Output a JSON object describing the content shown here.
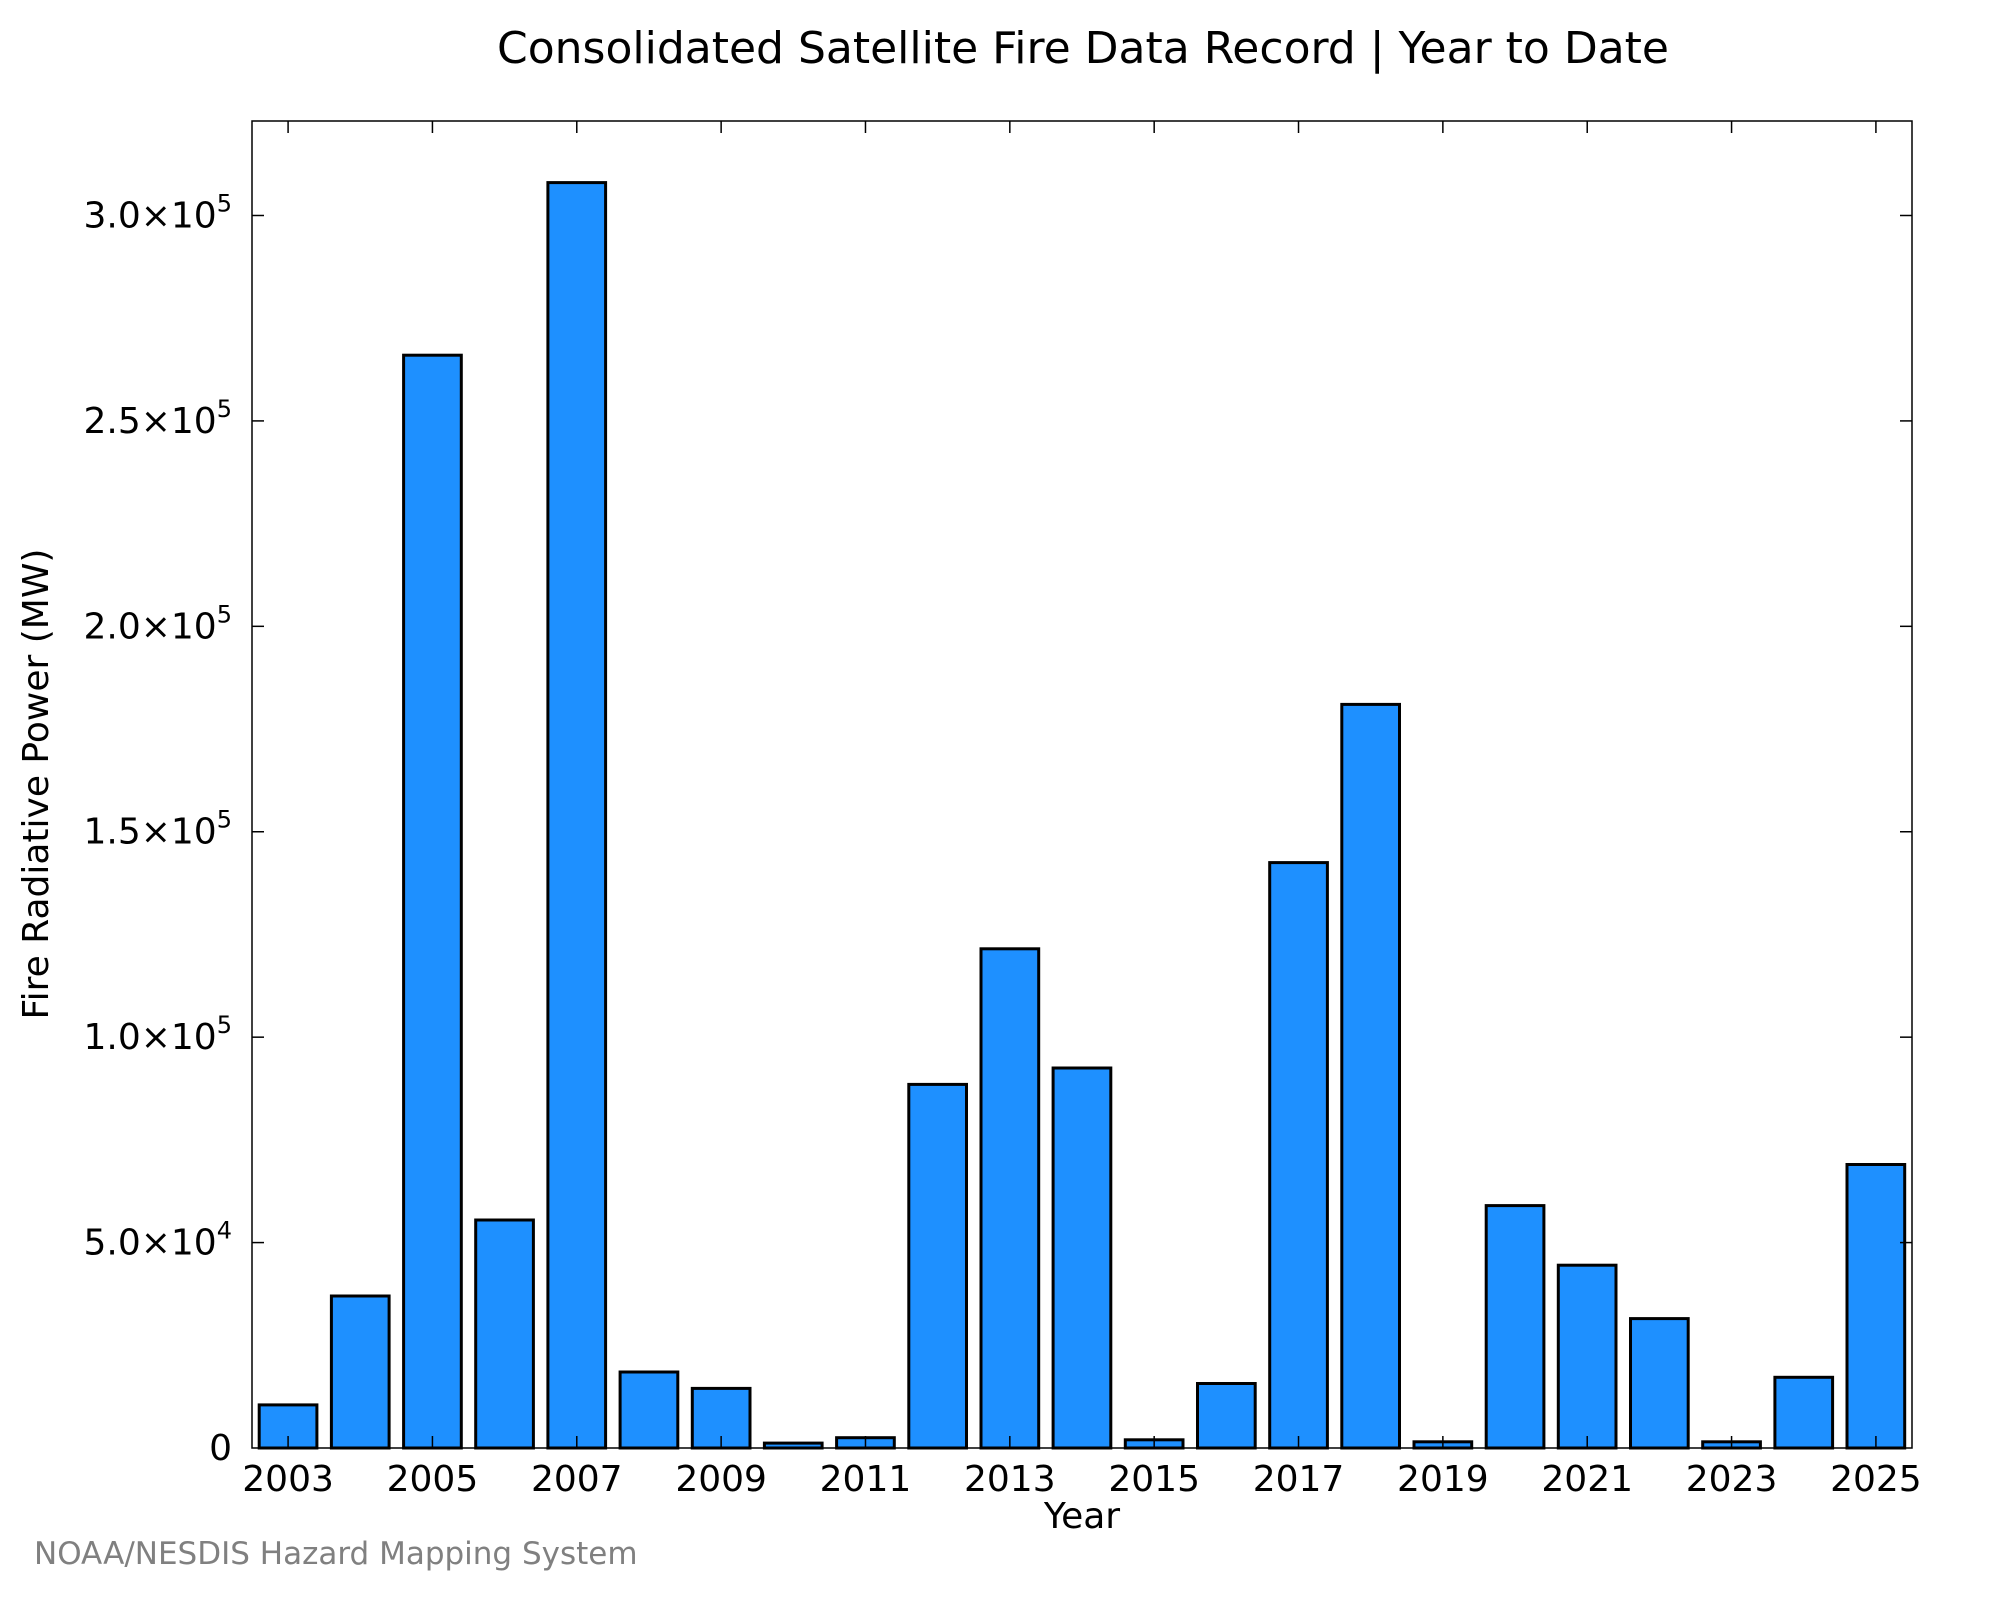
{
  "chart_data": {
    "type": "bar",
    "title": "Consolidated Satellite Fire Data Record | Year to Date",
    "xlabel": "Year",
    "ylabel": "Fire Radiative Power (MW)",
    "categories": [
      2003,
      2004,
      2005,
      2006,
      2007,
      2008,
      2009,
      2010,
      2011,
      2012,
      2013,
      2014,
      2015,
      2016,
      2017,
      2018,
      2019,
      2020,
      2021,
      2022,
      2023,
      2024,
      2025
    ],
    "values": [
      10500,
      37000,
      266000,
      55500,
      308000,
      18500,
      14500,
      1200,
      2500,
      88500,
      121500,
      92500,
      2000,
      15700,
      142500,
      181000,
      1500,
      59000,
      44500,
      31500,
      1500,
      17200,
      69000
    ],
    "xticks": [
      2003,
      2005,
      2007,
      2009,
      2011,
      2013,
      2015,
      2017,
      2019,
      2021,
      2023,
      2025
    ],
    "yticks": [
      {
        "value": 0,
        "mantissa": "0",
        "exp": ""
      },
      {
        "value": 50000,
        "mantissa": "5.0×10",
        "exp": "4"
      },
      {
        "value": 100000,
        "mantissa": "1.0×10",
        "exp": "5"
      },
      {
        "value": 150000,
        "mantissa": "1.5×10",
        "exp": "5"
      },
      {
        "value": 200000,
        "mantissa": "2.0×10",
        "exp": "5"
      },
      {
        "value": 250000,
        "mantissa": "2.5×10",
        "exp": "5"
      },
      {
        "value": 300000,
        "mantissa": "3.0×10",
        "exp": "5"
      }
    ],
    "ylim": [
      0,
      323000
    ],
    "xlim": [
      2002.5,
      2025.5
    ],
    "bar_color": "#1e90ff",
    "grid": false,
    "legend": "none"
  },
  "credit": "NOAA/NESDIS Hazard Mapping System"
}
